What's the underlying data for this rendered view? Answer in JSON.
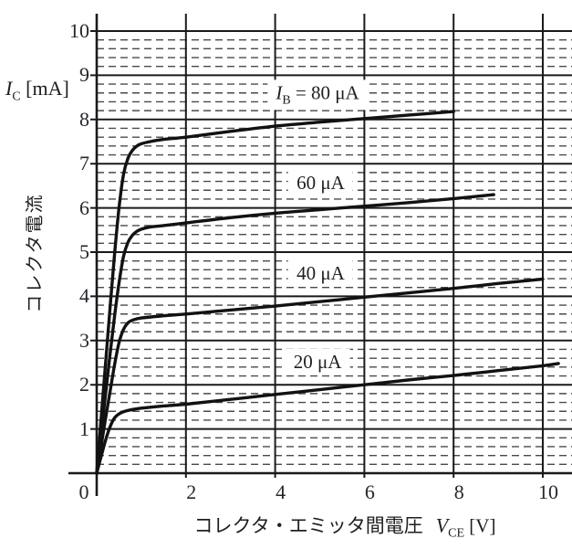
{
  "figure": {
    "background": "#ffffff",
    "axis_color": "#1a1a1a",
    "grid_solid_color": "#1a1a1a",
    "grid_dashed_color": "#4a4a4a",
    "curve_color": "#121212",
    "y_axis_title": {
      "symbol": "I",
      "subscript": "C",
      "unit": "[mA]"
    },
    "y_axis_title_jp": "コレクタ電流",
    "x_axis_title_jp": "コレクタ・エミッタ間電圧",
    "x_axis_title": {
      "symbol": "V",
      "subscript": "CE",
      "unit": "[V]"
    }
  },
  "chart_data": {
    "type": "line",
    "title": "",
    "xlabel": "コレクタ・エミッタ間電圧 VCE [V]",
    "ylabel": "コレクタ電流 IC [mA]",
    "xlim": [
      0,
      10.65
    ],
    "ylim": [
      0,
      10.4
    ],
    "x_ticks": [
      0,
      2,
      4,
      6,
      8,
      10
    ],
    "x_tick_labels": [
      "0",
      "2",
      "4",
      "6",
      "8",
      "10"
    ],
    "y_ticks": [
      1,
      2,
      3,
      4,
      5,
      6,
      7,
      8,
      9,
      10
    ],
    "y_tick_labels": [
      "1",
      "2",
      "3",
      "4",
      "5",
      "6",
      "7",
      "8",
      "9",
      "10"
    ],
    "grid": {
      "vertical_solid_step": 2,
      "horizontal_solid_step": 1,
      "horizontal_dashed_step": 0.2,
      "legend_position": "labels next to curves"
    },
    "series": [
      {
        "name": "IB = 80 uA",
        "base_current_uA": 80,
        "label": {
          "symbol": "I",
          "subscript": "B",
          "text": "= 80 μA"
        },
        "label_center": [
          4.95,
          8.55
        ],
        "points": [
          [
            0,
            0
          ],
          [
            0.1,
            1.25
          ],
          [
            0.2,
            2.5
          ],
          [
            0.3,
            3.75
          ],
          [
            0.4,
            4.95
          ],
          [
            0.5,
            6.0
          ],
          [
            0.6,
            6.75
          ],
          [
            0.7,
            7.12
          ],
          [
            0.8,
            7.3
          ],
          [
            0.9,
            7.4
          ],
          [
            1.0,
            7.45
          ],
          [
            1.2,
            7.5
          ],
          [
            1.5,
            7.55
          ],
          [
            2,
            7.6
          ],
          [
            3,
            7.73
          ],
          [
            4,
            7.85
          ],
          [
            5,
            7.94
          ],
          [
            6,
            8.02
          ],
          [
            7,
            8.1
          ],
          [
            8,
            8.18
          ]
        ]
      },
      {
        "name": "IB = 60 uA",
        "base_current_uA": 60,
        "label": {
          "text": "60 μA"
        },
        "label_center": [
          5.02,
          6.57
        ],
        "points": [
          [
            0,
            0
          ],
          [
            0.1,
            0.9
          ],
          [
            0.2,
            1.8
          ],
          [
            0.3,
            2.7
          ],
          [
            0.4,
            3.55
          ],
          [
            0.5,
            4.3
          ],
          [
            0.6,
            4.9
          ],
          [
            0.7,
            5.22
          ],
          [
            0.8,
            5.38
          ],
          [
            0.9,
            5.47
          ],
          [
            1.0,
            5.52
          ],
          [
            1.2,
            5.57
          ],
          [
            1.5,
            5.6
          ],
          [
            2,
            5.66
          ],
          [
            3,
            5.78
          ],
          [
            4,
            5.88
          ],
          [
            5,
            5.96
          ],
          [
            6,
            6.04
          ],
          [
            7,
            6.12
          ],
          [
            8,
            6.21
          ],
          [
            8.9,
            6.3
          ]
        ]
      },
      {
        "name": "IB = 40 uA",
        "base_current_uA": 40,
        "label": {
          "text": "40 μA"
        },
        "label_center": [
          5.02,
          4.52
        ],
        "points": [
          [
            0,
            0
          ],
          [
            0.1,
            0.62
          ],
          [
            0.2,
            1.25
          ],
          [
            0.3,
            1.85
          ],
          [
            0.4,
            2.45
          ],
          [
            0.5,
            2.95
          ],
          [
            0.6,
            3.25
          ],
          [
            0.7,
            3.4
          ],
          [
            0.8,
            3.46
          ],
          [
            1.0,
            3.51
          ],
          [
            1.5,
            3.56
          ],
          [
            2,
            3.6
          ],
          [
            3,
            3.69
          ],
          [
            4,
            3.78
          ],
          [
            5,
            3.88
          ],
          [
            6,
            3.98
          ],
          [
            7,
            4.08
          ],
          [
            8,
            4.18
          ],
          [
            9,
            4.29
          ],
          [
            10,
            4.39
          ]
        ]
      },
      {
        "name": "IB = 20 uA",
        "base_current_uA": 20,
        "label": {
          "text": "20 μA"
        },
        "label_center": [
          4.95,
          2.52
        ],
        "points": [
          [
            0,
            0
          ],
          [
            0.1,
            0.38
          ],
          [
            0.2,
            0.75
          ],
          [
            0.3,
            1.05
          ],
          [
            0.4,
            1.25
          ],
          [
            0.5,
            1.34
          ],
          [
            0.6,
            1.39
          ],
          [
            0.8,
            1.44
          ],
          [
            1.0,
            1.47
          ],
          [
            1.5,
            1.52
          ],
          [
            2,
            1.56
          ],
          [
            3,
            1.67
          ],
          [
            4,
            1.78
          ],
          [
            5,
            1.89
          ],
          [
            6,
            2.0
          ],
          [
            7,
            2.11
          ],
          [
            8,
            2.21
          ],
          [
            9,
            2.32
          ],
          [
            10,
            2.43
          ],
          [
            10.35,
            2.48
          ]
        ]
      }
    ]
  }
}
